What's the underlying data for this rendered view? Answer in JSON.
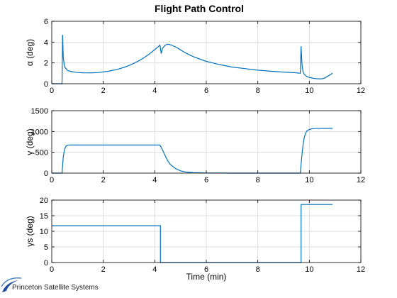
{
  "figure": {
    "title": "Flight Path Control",
    "xlabel": "Time (min)",
    "logo_text": "Princeton Satellite Systems",
    "series_color": "#0072BD",
    "grid_color": "#dddddd"
  },
  "chart_data": [
    {
      "type": "line",
      "title": "Flight Path Control",
      "xlabel": "",
      "ylabel": "α (deg)",
      "xlim": [
        0,
        12
      ],
      "ylim": [
        0,
        6
      ],
      "xticks": [
        0,
        2,
        4,
        6,
        8,
        10,
        12
      ],
      "yticks": [
        0,
        2,
        4,
        6
      ],
      "grid": true,
      "series": [
        {
          "x": [
            0,
            0.4,
            0.42,
            0.45,
            0.5,
            0.6,
            0.7,
            0.8,
            1.0,
            1.2,
            1.4,
            1.6,
            1.8,
            2.0,
            2.2,
            2.4,
            2.6,
            2.8,
            3.0,
            3.2,
            3.4,
            3.6,
            3.8,
            4.0,
            4.2,
            4.25,
            4.3,
            4.4,
            4.5,
            4.6,
            4.7,
            4.8,
            5.0,
            5.2,
            5.5,
            6.0,
            6.5,
            7.0,
            7.5,
            8.0,
            8.5,
            9.0,
            9.5,
            9.65,
            9.68,
            9.7,
            9.72,
            9.75,
            9.8,
            9.9,
            10.0,
            10.1,
            10.2,
            10.3,
            10.4,
            10.5,
            10.6,
            10.7,
            10.8,
            10.9
          ],
          "y": [
            0,
            0,
            4.7,
            2.5,
            1.6,
            1.3,
            1.2,
            1.15,
            1.08,
            1.05,
            1.04,
            1.05,
            1.08,
            1.13,
            1.2,
            1.3,
            1.42,
            1.57,
            1.75,
            1.97,
            2.23,
            2.53,
            2.88,
            3.28,
            3.7,
            2.9,
            3.4,
            3.7,
            3.8,
            3.75,
            3.65,
            3.55,
            3.25,
            2.95,
            2.6,
            2.15,
            1.85,
            1.6,
            1.45,
            1.3,
            1.2,
            1.12,
            1.05,
            1.0,
            3.6,
            2.6,
            1.7,
            1.2,
            0.9,
            0.7,
            0.6,
            0.55,
            0.5,
            0.48,
            0.47,
            0.48,
            0.55,
            0.7,
            0.85,
            1.0
          ]
        }
      ]
    },
    {
      "type": "line",
      "xlabel": "",
      "ylabel": "γ (deg)",
      "xlim": [
        0,
        12
      ],
      "ylim": [
        0,
        1500
      ],
      "xticks": [
        0,
        2,
        4,
        6,
        8,
        10,
        12
      ],
      "yticks": [
        0,
        500,
        1000,
        1500
      ],
      "grid": true,
      "series": [
        {
          "x": [
            0,
            0.4,
            0.45,
            0.5,
            0.55,
            0.6,
            0.7,
            1.0,
            2.0,
            3.0,
            4.0,
            4.2,
            4.3,
            4.4,
            4.5,
            4.6,
            4.8,
            5.0,
            5.2,
            5.5,
            6.0,
            6.5,
            7.0,
            8.0,
            9.0,
            9.65,
            9.7,
            9.75,
            9.8,
            9.85,
            9.9,
            10.0,
            10.1,
            10.2,
            10.5,
            10.9
          ],
          "y": [
            0,
            0,
            400,
            580,
            650,
            670,
            675,
            675,
            675,
            675,
            675,
            675,
            560,
            420,
            300,
            210,
            110,
            55,
            28,
            10,
            3,
            1,
            0,
            0,
            0,
            0,
            350,
            650,
            850,
            950,
            1010,
            1050,
            1065,
            1070,
            1075,
            1075
          ]
        }
      ]
    },
    {
      "type": "line",
      "xlabel": "Time (min)",
      "ylabel": "γs (deg)",
      "xlim": [
        0,
        12
      ],
      "ylim": [
        0,
        20
      ],
      "xticks": [
        0,
        2,
        4,
        6,
        8,
        10,
        12
      ],
      "yticks": [
        0,
        5,
        10,
        15,
        20
      ],
      "grid": true,
      "series": [
        {
          "x": [
            0,
            4.22,
            4.22,
            9.68,
            9.68,
            10.9
          ],
          "y": [
            11.8,
            11.8,
            0,
            0,
            18.6,
            18.6
          ]
        }
      ]
    }
  ]
}
